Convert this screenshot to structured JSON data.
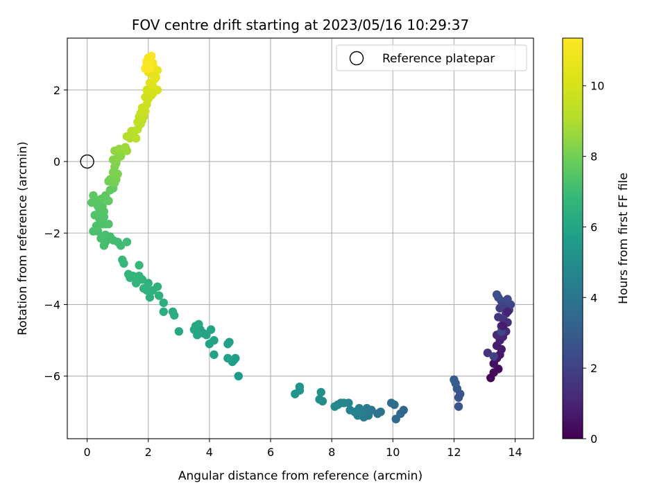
{
  "chart_data": {
    "type": "scatter",
    "title": "FOV centre drift starting at 2023/05/16 10:29:37",
    "xlabel": "Angular distance from reference (arcmin)",
    "ylabel": "Rotation from reference (arcmin)",
    "xlim": [
      -0.65,
      14.6
    ],
    "ylim": [
      -7.75,
      3.45
    ],
    "xticks": [
      0,
      2,
      4,
      6,
      8,
      10,
      12,
      14
    ],
    "yticks": [
      -6,
      -4,
      -2,
      0,
      2
    ],
    "grid": true,
    "legend": {
      "placement": "top-right",
      "entries": [
        "Reference platepar"
      ]
    },
    "colorbar": {
      "label": "Hours from first FF file",
      "range": [
        0,
        11.35
      ],
      "ticks": [
        0,
        2,
        4,
        6,
        8,
        10
      ],
      "colormap": "viridis"
    },
    "reference_point": {
      "x": 0,
      "y": 0
    },
    "points": [
      [
        13.2,
        -6.05,
        0.1
      ],
      [
        13.3,
        -5.9,
        0.2
      ],
      [
        13.45,
        -5.8,
        0.3
      ],
      [
        13.3,
        -5.65,
        0.4
      ],
      [
        13.4,
        -5.5,
        0.5
      ],
      [
        13.5,
        -5.4,
        0.6
      ],
      [
        13.55,
        -5.25,
        0.7
      ],
      [
        13.4,
        -5.15,
        0.8
      ],
      [
        13.5,
        -5.0,
        0.9
      ],
      [
        13.6,
        -4.9,
        1.0
      ],
      [
        13.4,
        -4.85,
        1.1
      ],
      [
        13.7,
        -4.75,
        1.2
      ],
      [
        13.55,
        -4.6,
        1.3
      ],
      [
        13.75,
        -4.5,
        1.4
      ],
      [
        13.6,
        -4.4,
        1.5
      ],
      [
        13.45,
        -4.35,
        1.6
      ],
      [
        13.7,
        -4.25,
        1.7
      ],
      [
        13.8,
        -4.15,
        1.8
      ],
      [
        13.5,
        -4.1,
        1.9
      ],
      [
        13.65,
        -4.0,
        2.0
      ],
      [
        13.85,
        -4.0,
        2.1
      ],
      [
        13.55,
        -3.9,
        2.2
      ],
      [
        13.75,
        -3.85,
        2.3
      ],
      [
        13.45,
        -3.8,
        2.4
      ],
      [
        13.4,
        -3.72,
        2.5
      ],
      [
        13.1,
        -5.35,
        1.5
      ],
      [
        13.3,
        -5.45,
        2.0
      ],
      [
        13.55,
        -4.75,
        2.2
      ],
      [
        13.75,
        -4.2,
        1.0
      ],
      [
        13.6,
        -4.6,
        0.8
      ],
      [
        12.15,
        -6.85,
        2.7
      ],
      [
        12.2,
        -6.5,
        2.8
      ],
      [
        12.1,
        -6.35,
        2.9
      ],
      [
        12.05,
        -6.2,
        3.0
      ],
      [
        12.0,
        -6.1,
        3.05
      ],
      [
        12.15,
        -6.6,
        2.75
      ],
      [
        10.35,
        -6.95,
        3.3
      ],
      [
        10.25,
        -7.05,
        3.4
      ],
      [
        10.1,
        -7.2,
        3.5
      ],
      [
        10.05,
        -6.8,
        3.6
      ],
      [
        9.95,
        -6.75,
        3.7
      ],
      [
        9.6,
        -7.0,
        3.8
      ],
      [
        9.5,
        -7.05,
        3.9
      ],
      [
        9.3,
        -6.95,
        4.0
      ],
      [
        9.2,
        -7.1,
        4.1
      ],
      [
        9.15,
        -6.9,
        4.15
      ],
      [
        9.05,
        -7.15,
        4.2
      ],
      [
        9.0,
        -7.0,
        4.3
      ],
      [
        8.9,
        -6.9,
        4.4
      ],
      [
        8.85,
        -7.1,
        4.45
      ],
      [
        8.75,
        -7.0,
        4.5
      ],
      [
        8.6,
        -6.95,
        4.55
      ],
      [
        8.55,
        -6.75,
        4.6
      ],
      [
        8.4,
        -6.75,
        4.65
      ],
      [
        8.3,
        -6.75,
        4.7
      ],
      [
        8.2,
        -6.8,
        4.75
      ],
      [
        8.1,
        -6.85,
        4.8
      ],
      [
        7.7,
        -6.7,
        5.0
      ],
      [
        7.6,
        -6.65,
        5.05
      ],
      [
        7.65,
        -6.45,
        5.1
      ],
      [
        6.95,
        -6.3,
        5.2
      ],
      [
        6.95,
        -6.4,
        5.25
      ],
      [
        6.8,
        -6.5,
        5.3
      ],
      [
        4.95,
        -6.0,
        5.6
      ],
      [
        4.8,
        -5.55,
        5.65
      ],
      [
        4.85,
        -5.5,
        5.7
      ],
      [
        4.75,
        -5.6,
        5.72
      ],
      [
        4.6,
        -5.5,
        5.75
      ],
      [
        4.6,
        -5.1,
        5.8
      ],
      [
        4.65,
        -5.05,
        5.82
      ],
      [
        4.15,
        -5.4,
        5.85
      ],
      [
        4.15,
        -5.0,
        5.88
      ],
      [
        4.0,
        -5.1,
        5.9
      ],
      [
        4.05,
        -4.7,
        5.92
      ],
      [
        3.9,
        -4.85,
        5.95
      ],
      [
        3.8,
        -4.8,
        5.97
      ],
      [
        3.7,
        -4.7,
        6.0
      ],
      [
        3.6,
        -4.85,
        6.02
      ],
      [
        3.55,
        -4.6,
        6.05
      ],
      [
        3.65,
        -4.55,
        6.08
      ],
      [
        3.5,
        -4.7,
        6.1
      ],
      [
        3.0,
        -4.75,
        6.15
      ],
      [
        2.85,
        -4.3,
        6.3
      ],
      [
        2.8,
        -4.2,
        6.32
      ],
      [
        2.5,
        -4.2,
        6.35
      ],
      [
        2.5,
        -3.95,
        6.4
      ],
      [
        2.35,
        -3.75,
        6.45
      ],
      [
        2.3,
        -3.5,
        6.5
      ],
      [
        2.15,
        -3.6,
        6.52
      ],
      [
        2.05,
        -3.8,
        6.55
      ],
      [
        2.0,
        -3.4,
        6.58
      ],
      [
        1.95,
        -3.6,
        6.6
      ],
      [
        1.85,
        -3.55,
        6.62
      ],
      [
        1.8,
        -3.3,
        6.65
      ],
      [
        1.7,
        -3.2,
        6.68
      ],
      [
        1.6,
        -3.4,
        6.7
      ],
      [
        1.5,
        -3.2,
        6.72
      ],
      [
        1.4,
        -3.25,
        6.75
      ],
      [
        1.35,
        -3.15,
        6.78
      ],
      [
        1.7,
        -2.9,
        6.8
      ],
      [
        1.2,
        -2.85,
        6.82
      ],
      [
        1.15,
        -2.75,
        6.85
      ],
      [
        1.3,
        -2.25,
        7.0
      ],
      [
        1.1,
        -2.35,
        7.02
      ],
      [
        1.0,
        -2.25,
        7.05
      ],
      [
        0.85,
        -2.2,
        7.08
      ],
      [
        0.75,
        -2.1,
        7.1
      ],
      [
        0.6,
        -2.25,
        7.12
      ],
      [
        0.55,
        -2.35,
        7.15
      ],
      [
        0.45,
        -2.15,
        7.18
      ],
      [
        0.6,
        -2.05,
        7.2
      ],
      [
        0.35,
        -1.95,
        7.22
      ],
      [
        0.2,
        -1.95,
        7.25
      ],
      [
        0.3,
        -1.8,
        7.28
      ],
      [
        0.5,
        -1.75,
        7.3
      ],
      [
        0.6,
        -1.75,
        7.32
      ],
      [
        0.7,
        -1.75,
        7.34
      ],
      [
        0.4,
        -1.6,
        7.36
      ],
      [
        0.55,
        -1.55,
        7.38
      ],
      [
        0.25,
        -1.5,
        7.4
      ],
      [
        0.4,
        -1.4,
        7.42
      ],
      [
        0.55,
        -1.4,
        7.45
      ],
      [
        0.35,
        -1.25,
        7.48
      ],
      [
        0.5,
        -1.25,
        7.5
      ],
      [
        0.15,
        -1.15,
        7.52
      ],
      [
        0.3,
        -1.1,
        7.55
      ],
      [
        0.45,
        -1.05,
        7.58
      ],
      [
        0.2,
        -0.95,
        7.6
      ],
      [
        0.6,
        -0.95,
        7.62
      ],
      [
        0.7,
        -1.1,
        7.65
      ],
      [
        0.75,
        -0.8,
        7.7
      ],
      [
        0.85,
        -0.75,
        7.72
      ],
      [
        0.9,
        -0.6,
        8.0
      ],
      [
        0.75,
        -0.5,
        8.02
      ],
      [
        0.7,
        -0.55,
        8.05
      ],
      [
        0.85,
        -0.45,
        8.08
      ],
      [
        0.95,
        -0.5,
        8.1
      ],
      [
        1.0,
        -0.35,
        8.15
      ],
      [
        0.85,
        -0.3,
        8.18
      ],
      [
        0.9,
        -0.15,
        8.2
      ],
      [
        0.95,
        -0.05,
        8.25
      ],
      [
        0.85,
        0.05,
        8.3
      ],
      [
        1.0,
        0.1,
        8.35
      ],
      [
        1.1,
        0.15,
        8.4
      ],
      [
        1.05,
        0.25,
        8.45
      ],
      [
        0.9,
        0.3,
        8.5
      ],
      [
        1.05,
        0.35,
        8.55
      ],
      [
        1.2,
        0.35,
        8.6
      ],
      [
        1.3,
        0.3,
        8.65
      ],
      [
        1.25,
        0.4,
        8.7
      ],
      [
        1.4,
        0.65,
        9.0
      ],
      [
        1.3,
        0.7,
        9.05
      ],
      [
        1.45,
        0.85,
        9.1
      ],
      [
        1.55,
        0.85,
        9.15
      ],
      [
        1.65,
        0.9,
        9.2
      ],
      [
        1.6,
        0.65,
        9.25
      ],
      [
        1.75,
        1.05,
        9.3
      ],
      [
        1.65,
        1.1,
        9.35
      ],
      [
        1.8,
        1.15,
        9.4
      ],
      [
        1.7,
        1.25,
        9.45
      ],
      [
        1.85,
        1.25,
        9.5
      ],
      [
        1.75,
        1.35,
        9.55
      ],
      [
        1.9,
        1.4,
        9.6
      ],
      [
        1.8,
        1.5,
        9.65
      ],
      [
        1.95,
        1.6,
        9.7
      ],
      [
        2.0,
        1.75,
        9.75
      ],
      [
        1.9,
        1.8,
        9.8
      ],
      [
        2.1,
        1.85,
        9.85
      ],
      [
        2.0,
        1.95,
        9.9
      ],
      [
        1.95,
        2.0,
        9.95
      ],
      [
        2.15,
        2.1,
        10.2
      ],
      [
        2.05,
        2.2,
        10.3
      ],
      [
        2.2,
        2.3,
        10.4
      ],
      [
        2.25,
        2.35,
        10.5
      ],
      [
        2.1,
        2.45,
        10.55
      ],
      [
        2.0,
        2.5,
        10.6
      ],
      [
        2.3,
        2.55,
        10.7
      ],
      [
        2.2,
        2.6,
        10.8
      ],
      [
        2.05,
        2.65,
        10.9
      ],
      [
        2.15,
        2.75,
        11.0
      ],
      [
        1.95,
        2.8,
        11.05
      ],
      [
        2.0,
        2.9,
        11.1
      ],
      [
        2.05,
        2.85,
        11.15
      ],
      [
        2.1,
        2.95,
        11.2
      ],
      [
        1.95,
        2.75,
        11.25
      ],
      [
        2.05,
        2.6,
        11.3
      ],
      [
        1.9,
        2.6,
        11.32
      ],
      [
        2.2,
        2.4,
        10.45
      ],
      [
        2.3,
        2.0,
        10.1
      ],
      [
        2.15,
        1.9,
        10.0
      ]
    ]
  }
}
